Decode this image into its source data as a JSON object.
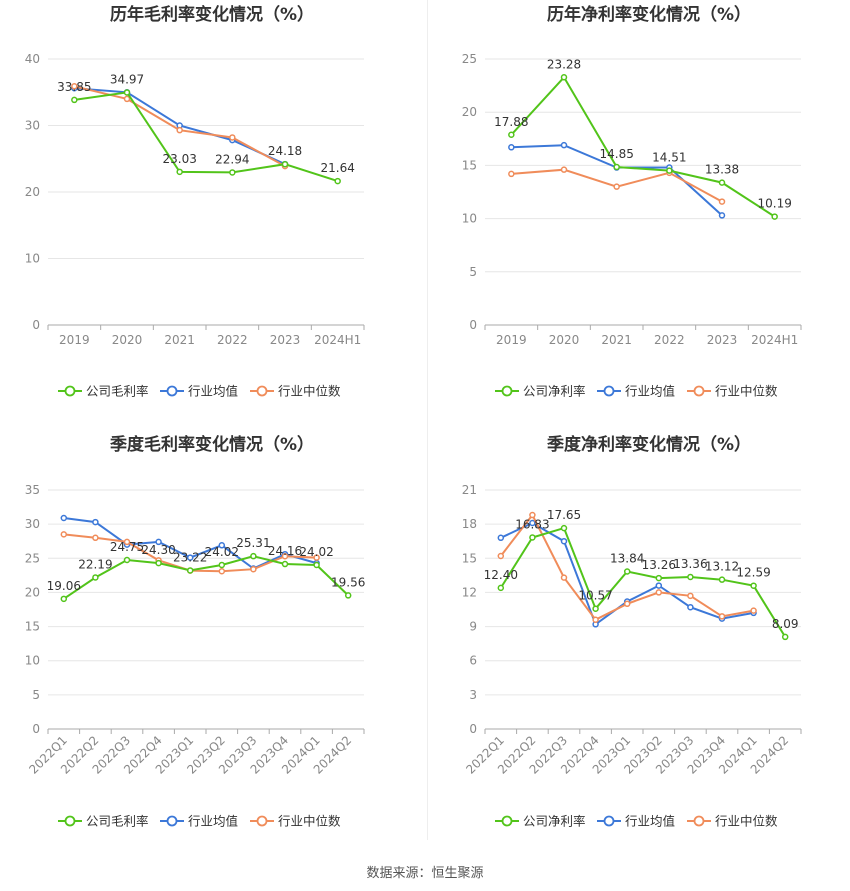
{
  "source_text": "数据来源：恒生聚源",
  "colors": {
    "company": "#52c41a",
    "industry_avg": "#3c78d8",
    "industry_median": "#f08c5a"
  },
  "chart_data": [
    {
      "id": "annual-gross",
      "type": "line",
      "title": "历年毛利率变化情况（%）",
      "categories": [
        "2019",
        "2020",
        "2021",
        "2022",
        "2023",
        "2024H1"
      ],
      "ylim": [
        0,
        40
      ],
      "yticks": [
        "0",
        "10",
        "20",
        "30",
        "40"
      ],
      "legend_position": "bottom",
      "grid": true,
      "series": [
        {
          "name": "公司毛利率",
          "key": "company",
          "values": [
            33.85,
            34.97,
            23.03,
            22.94,
            24.18,
            21.64
          ],
          "labels": [
            "33.85",
            "34.97",
            "23.03",
            "22.94",
            "24.18",
            "21.64"
          ]
        },
        {
          "name": "行业均值",
          "key": "industry_avg",
          "values": [
            35.6,
            35.0,
            30.0,
            27.8,
            24.2,
            null
          ]
        },
        {
          "name": "行业中位数",
          "key": "industry_median",
          "values": [
            35.9,
            34.0,
            29.3,
            28.2,
            23.9,
            null
          ]
        }
      ]
    },
    {
      "id": "annual-net",
      "type": "line",
      "title": "历年净利率变化情况（%）",
      "categories": [
        "2019",
        "2020",
        "2021",
        "2022",
        "2023",
        "2024H1"
      ],
      "ylim": [
        0,
        25
      ],
      "yticks": [
        "0",
        "5",
        "10",
        "15",
        "20",
        "25"
      ],
      "legend_position": "bottom",
      "grid": true,
      "series": [
        {
          "name": "公司净利率",
          "key": "company",
          "values": [
            17.88,
            23.28,
            14.85,
            14.51,
            13.38,
            10.19
          ],
          "labels": [
            "17.88",
            "23.28",
            "14.85",
            "14.51",
            "13.38",
            "10.19"
          ]
        },
        {
          "name": "行业均值",
          "key": "industry_avg",
          "values": [
            16.7,
            16.9,
            14.8,
            14.8,
            10.3,
            null
          ]
        },
        {
          "name": "行业中位数",
          "key": "industry_median",
          "values": [
            14.2,
            14.6,
            13.0,
            14.3,
            11.6,
            null
          ]
        }
      ]
    },
    {
      "id": "quarterly-gross",
      "type": "line",
      "title": "季度毛利率变化情况（%）",
      "categories": [
        "2022Q1",
        "2022Q2",
        "2022Q3",
        "2022Q4",
        "2023Q1",
        "2023Q2",
        "2023Q3",
        "2023Q4",
        "2024Q1",
        "2024Q2"
      ],
      "ylim": [
        0,
        35
      ],
      "yticks": [
        "0",
        "5",
        "10",
        "15",
        "20",
        "25",
        "30",
        "35"
      ],
      "legend_position": "bottom",
      "grid": true,
      "series": [
        {
          "name": "公司毛利率",
          "key": "company",
          "values": [
            19.06,
            22.19,
            24.75,
            24.3,
            23.22,
            24.02,
            25.31,
            24.16,
            24.02,
            19.56
          ],
          "labels": [
            "19.06",
            "22.19",
            "24.75",
            "24.30",
            "23.22",
            "24.02",
            "25.31",
            "24.16",
            "24.02",
            "19.56"
          ]
        },
        {
          "name": "行业均值",
          "key": "industry_avg",
          "values": [
            30.9,
            30.3,
            27.0,
            27.4,
            25.1,
            26.9,
            23.5,
            25.6,
            24.3,
            null
          ]
        },
        {
          "name": "行业中位数",
          "key": "industry_median",
          "values": [
            28.5,
            28.0,
            27.4,
            24.7,
            23.2,
            23.1,
            23.4,
            25.3,
            25.1,
            null
          ]
        }
      ]
    },
    {
      "id": "quarterly-net",
      "type": "line",
      "title": "季度净利率变化情况（%）",
      "categories": [
        "2022Q1",
        "2022Q2",
        "2022Q3",
        "2022Q4",
        "2023Q1",
        "2023Q2",
        "2023Q3",
        "2023Q4",
        "2024Q1",
        "2024Q2"
      ],
      "ylim": [
        0,
        21
      ],
      "yticks": [
        "0",
        "3",
        "6",
        "9",
        "12",
        "15",
        "18",
        "21"
      ],
      "legend_position": "bottom",
      "grid": true,
      "series": [
        {
          "name": "公司净利率",
          "key": "company",
          "values": [
            12.4,
            16.83,
            17.65,
            10.57,
            13.84,
            13.26,
            13.36,
            13.12,
            12.59,
            8.09
          ],
          "labels": [
            "12.40",
            "16.83",
            "17.65",
            "10.57",
            "13.84",
            "13.26",
            "13.36",
            "13.12",
            "12.59",
            "8.09"
          ]
        },
        {
          "name": "行业均值",
          "key": "industry_avg",
          "values": [
            16.8,
            18.1,
            16.5,
            9.2,
            11.2,
            12.6,
            10.7,
            9.7,
            10.2,
            null
          ]
        },
        {
          "name": "行业中位数",
          "key": "industry_median",
          "values": [
            15.2,
            18.8,
            13.3,
            9.6,
            11.0,
            12.0,
            11.7,
            9.9,
            10.4,
            null
          ]
        }
      ]
    }
  ]
}
